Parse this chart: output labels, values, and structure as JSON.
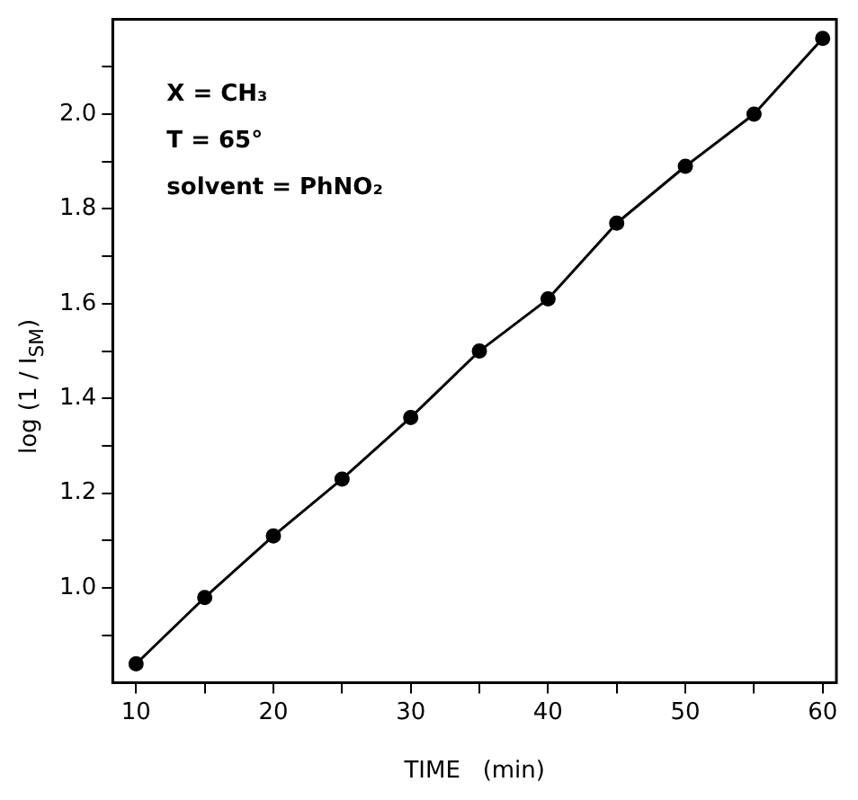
{
  "chart_data": {
    "type": "line",
    "xlabel": "TIME   (min)",
    "ylabel": "log (1 / I$_{SM}$)",
    "x": [
      10,
      15,
      20,
      25,
      30,
      35,
      40,
      45,
      50,
      55,
      60
    ],
    "series": [
      {
        "color": "#000000",
        "values": [
          0.84,
          0.98,
          1.11,
          1.23,
          1.36,
          1.5,
          1.61,
          1.77,
          1.89,
          2.0,
          2.16
        ]
      }
    ],
    "xlim": [
      8.3,
      61
    ],
    "xticks": [
      10,
      {
        "value": 15,
        "label": null
      },
      20,
      {
        "value": 25,
        "label": null
      },
      30,
      {
        "value": 35,
        "label": null
      },
      40,
      {
        "value": 45,
        "label": null
      },
      50,
      {
        "value": 55,
        "label": null
      },
      60
    ],
    "ylim": [
      0.8,
      2.2
    ],
    "yticks": [
      {
        "value": 0.9,
        "label": null
      },
      {
        "value": 1.0,
        "label": "1.0"
      },
      {
        "value": 1.1,
        "label": null
      },
      1.2,
      {
        "value": 1.3,
        "label": null
      },
      1.4,
      {
        "value": 1.5,
        "label": null
      },
      1.6,
      {
        "value": 1.7,
        "label": null
      },
      1.8,
      {
        "value": 1.9,
        "label": null
      },
      {
        "value": 2.0,
        "label": "2.0"
      },
      {
        "value": 2.1,
        "label": null
      }
    ],
    "annotations": [
      "X = CH₃",
      "T = 65°",
      "solvent = PhNO₂"
    ],
    "grid": false,
    "legend": false,
    "marker": "circle",
    "line_style": "solid"
  }
}
